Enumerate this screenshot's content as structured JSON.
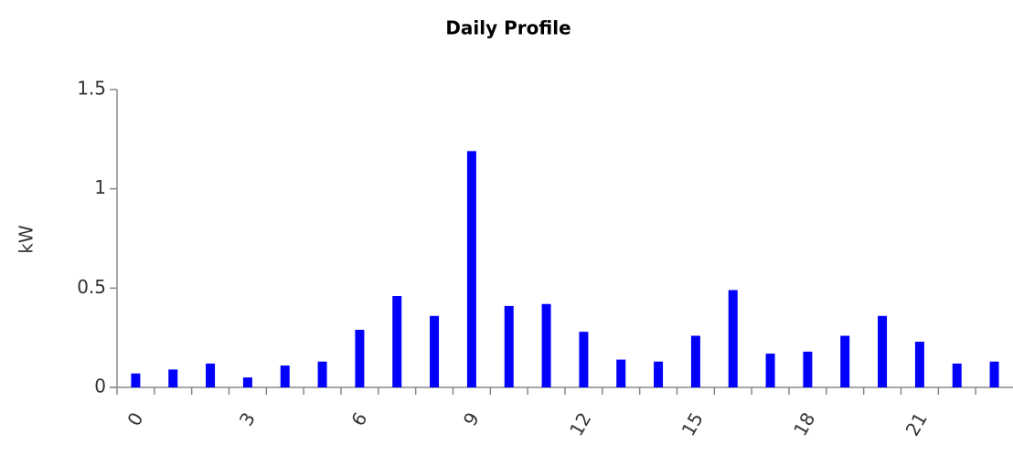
{
  "chart_data": {
    "type": "bar",
    "title": "Daily Profile",
    "y_label": "kW",
    "categories": [
      "0",
      null,
      null,
      "3",
      null,
      null,
      "6",
      null,
      null,
      "9",
      null,
      null,
      "12",
      null,
      null,
      "15",
      null,
      null,
      "18",
      null,
      null,
      "21",
      null,
      null
    ],
    "values": [
      0.07,
      0.09,
      0.12,
      0.05,
      0.11,
      0.13,
      0.29,
      0.46,
      0.36,
      1.19,
      0.41,
      0.42,
      0.28,
      0.14,
      0.13,
      0.26,
      0.49,
      0.17,
      0.18,
      0.26,
      0.36,
      0.23,
      0.12,
      0.13
    ],
    "color": "#0000ff",
    "ylim": [
      0,
      1.5
    ],
    "yticks": [
      0,
      0.5,
      1,
      1.5
    ],
    "grid": false
  }
}
